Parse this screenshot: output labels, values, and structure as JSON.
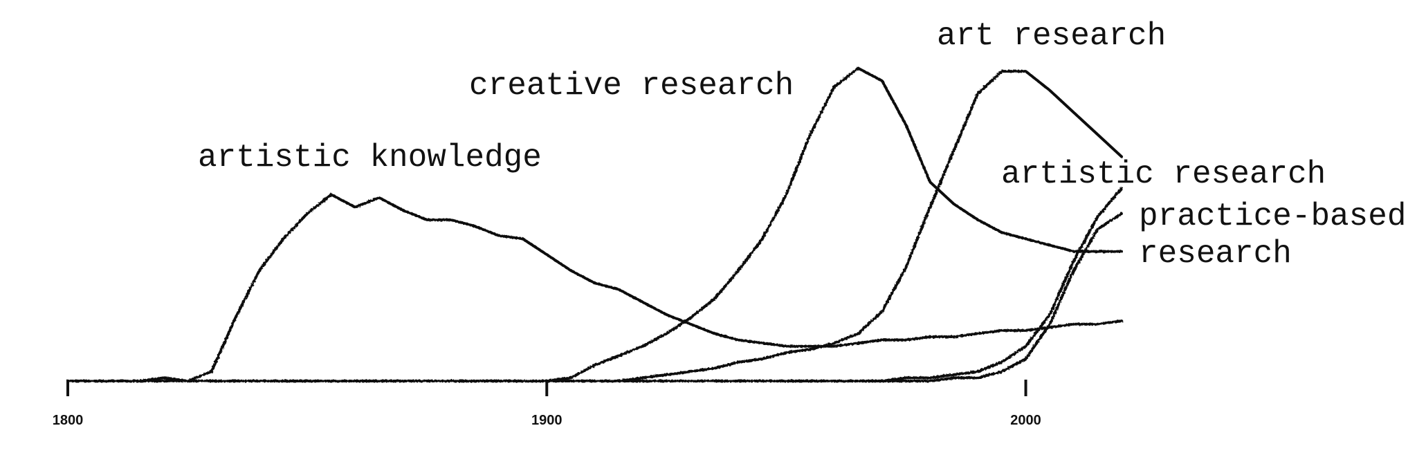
{
  "chart_data": {
    "type": "line",
    "x": [
      1800,
      1805,
      1810,
      1815,
      1820,
      1825,
      1830,
      1835,
      1840,
      1845,
      1850,
      1855,
      1860,
      1865,
      1870,
      1875,
      1880,
      1885,
      1890,
      1895,
      1900,
      1905,
      1910,
      1915,
      1920,
      1925,
      1930,
      1935,
      1940,
      1945,
      1950,
      1955,
      1960,
      1965,
      1970,
      1975,
      1980,
      1985,
      1990,
      1995,
      2000,
      2005,
      2010,
      2015,
      2020
    ],
    "xlim": [
      1800,
      2020
    ],
    "xticks": [
      1800,
      1900,
      2000
    ],
    "ylim": [
      0,
      100
    ],
    "series": [
      {
        "name": "artistic knowledge",
        "color": "#111111",
        "values": [
          0,
          0,
          0,
          0,
          1,
          0,
          3,
          20,
          35,
          45,
          53,
          59,
          55,
          58,
          54,
          51,
          51,
          49,
          46,
          45,
          40,
          35,
          31,
          29,
          25,
          21,
          18,
          15,
          13,
          12,
          11,
          11,
          11,
          12,
          13,
          13,
          14,
          14,
          15,
          16,
          16,
          17,
          18,
          18,
          19
        ]
      },
      {
        "name": "creative research",
        "color": "#111111",
        "values": [
          0,
          0,
          0,
          0,
          0,
          0,
          0,
          0,
          0,
          0,
          0,
          0,
          0,
          0,
          0,
          0,
          0,
          0,
          0,
          0,
          0,
          1,
          5,
          8,
          11,
          15,
          20,
          26,
          35,
          45,
          59,
          78,
          93,
          99,
          95,
          81,
          63,
          56,
          51,
          47,
          45,
          43,
          41,
          41,
          41
        ]
      },
      {
        "name": "art research",
        "color": "#111111",
        "values": [
          0,
          0,
          0,
          0,
          0,
          0,
          0,
          0,
          0,
          0,
          0,
          0,
          0,
          0,
          0,
          0,
          0,
          0,
          0,
          0,
          0,
          0,
          0,
          0,
          1,
          2,
          3,
          4,
          6,
          7,
          9,
          10,
          12,
          15,
          22,
          36,
          55,
          73,
          91,
          98,
          98,
          92,
          85,
          78,
          71
        ]
      },
      {
        "name": "artistic research",
        "color": "#111111",
        "values": [
          0,
          0,
          0,
          0,
          0,
          0,
          0,
          0,
          0,
          0,
          0,
          0,
          0,
          0,
          0,
          0,
          0,
          0,
          0,
          0,
          0,
          0,
          0,
          0,
          0,
          0,
          0,
          0,
          0,
          0,
          0,
          0,
          0,
          0,
          0,
          1,
          1,
          2,
          3,
          6,
          11,
          21,
          38,
          52,
          61
        ]
      },
      {
        "name": "practice-based research",
        "color": "#111111",
        "values": [
          0,
          0,
          0,
          0,
          0,
          0,
          0,
          0,
          0,
          0,
          0,
          0,
          0,
          0,
          0,
          0,
          0,
          0,
          0,
          0,
          0,
          0,
          0,
          0,
          0,
          0,
          0,
          0,
          0,
          0,
          0,
          0,
          0,
          0,
          0,
          0,
          0,
          1,
          1,
          3,
          7,
          18,
          35,
          48,
          53
        ]
      }
    ]
  }
}
